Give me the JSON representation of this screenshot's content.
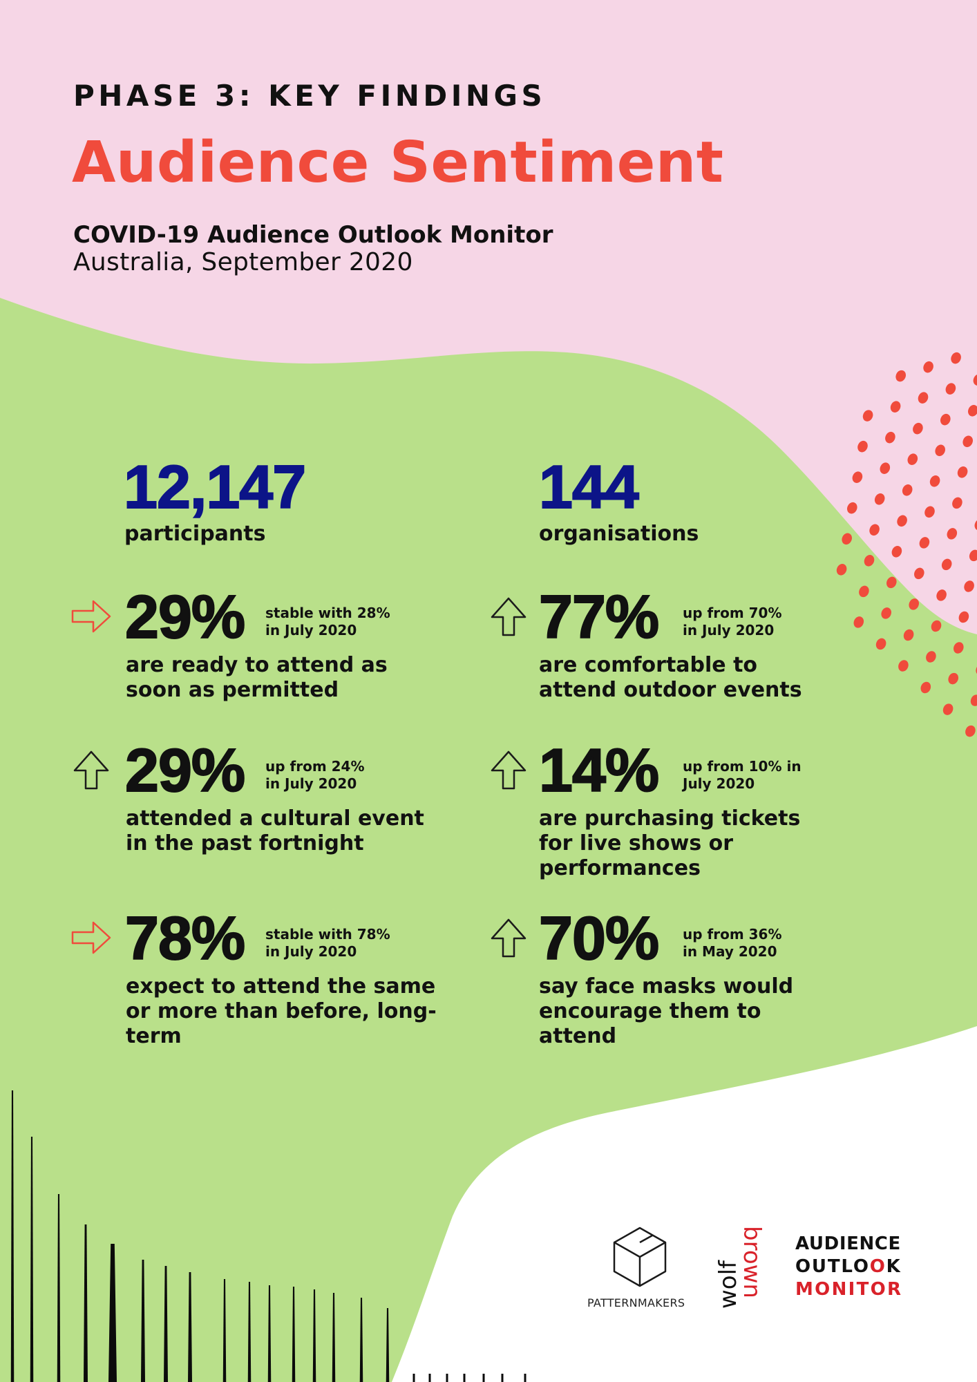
{
  "colors": {
    "background_pink": "#f6d6e6",
    "background_green": "#b9e08a",
    "accent_red": "#f04b3c",
    "number_blue": "#0c1488",
    "text_dark": "#111111",
    "logo_red": "#d9222a"
  },
  "header": {
    "kicker": "PHASE 3: KEY FINDINGS",
    "title": "Audience Sentiment",
    "subtitle": "COVID-19 Audience Outlook Monitor",
    "date_line": "Australia, September 2020"
  },
  "totals": [
    {
      "value": "12,147",
      "label": "participants"
    },
    {
      "value": "144",
      "label": "organisations"
    }
  ],
  "findings": [
    {
      "icon": "arrow-right-icon",
      "value": "29%",
      "note_lines": [
        "stable with 28%",
        "in July 2020"
      ],
      "text_lines": [
        "are ready to attend as",
        "soon as permitted"
      ]
    },
    {
      "icon": "arrow-up-icon",
      "value": "77%",
      "note_lines": [
        "up from 70%",
        "in July 2020"
      ],
      "text_lines": [
        "are comfortable to",
        "attend outdoor events"
      ]
    },
    {
      "icon": "arrow-up-icon",
      "value": "29%",
      "note_lines": [
        "up from 24%",
        "in July 2020"
      ],
      "text_lines": [
        "attended a cultural event",
        "in the past fortnight"
      ]
    },
    {
      "icon": "arrow-up-icon",
      "value": "14%",
      "note_lines": [
        "up from 10% in",
        "July 2020"
      ],
      "text_lines": [
        "are purchasing tickets",
        "for live shows or",
        "performances"
      ]
    },
    {
      "icon": "arrow-right-icon",
      "value": "78%",
      "note_lines": [
        "stable with 78%",
        "in July 2020"
      ],
      "text_lines": [
        "expect to attend the same",
        "or more than before, long-",
        "term"
      ]
    },
    {
      "icon": "arrow-up-icon",
      "value": "70%",
      "note_lines": [
        "up from 36%",
        "in May 2020"
      ],
      "text_lines": [
        "say face masks would",
        "encourage them to",
        "attend"
      ]
    }
  ],
  "logos": {
    "patternmakers": {
      "icon": "hexagon-cube-icon",
      "text": "PATTERNMAKERS"
    },
    "wolfbrown": {
      "parts": [
        "wolf",
        "brown"
      ]
    },
    "audience_outlook_monitor": {
      "lines": [
        "AUDIENCE",
        "OUTLOOK",
        "MONITOR"
      ]
    }
  }
}
